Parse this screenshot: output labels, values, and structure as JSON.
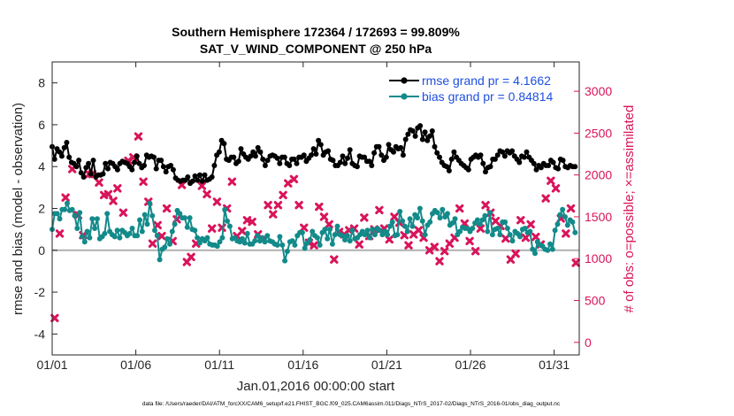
{
  "chart_data": {
    "type": "line",
    "title_line1": "Southern Hemisphere 172364 / 172693 = 99.809%",
    "title_line2": "SAT_V_WIND_COMPONENT @ 250 hPa",
    "xlabel": "Jan.01,2016 00:00:00 start",
    "ylabel_left": "rmse and bias (model - observation)",
    "ylabel_right": "# of obs: o=possible; ×=assimilated",
    "footer": "data file: /Users/raeder/DAI/ATM_forcXX/CAM6_setup/f.e21.FHIST_BGC.f09_025.CAM6assim.011/Diags_NTrS_2017-02/Diags_NTrS_2016-01/obs_diag_output.nc",
    "xlim": [
      0,
      31.5
    ],
    "ylim_left": [
      -5,
      9
    ],
    "ylim_right": [
      -150,
      3350
    ],
    "grid": false,
    "xticks": [
      0,
      5,
      10,
      15,
      20,
      25,
      30
    ],
    "xtick_labels": [
      "01/01",
      "01/06",
      "01/11",
      "01/16",
      "01/21",
      "01/26",
      "01/31"
    ],
    "yticks_left": [
      -4,
      -2,
      0,
      2,
      4,
      6,
      8
    ],
    "yticks_right": [
      0,
      500,
      1000,
      1500,
      2000,
      2500,
      3000
    ],
    "legend": {
      "location": "top-right",
      "entries": [
        "rmse grand pr = 4.1662",
        "bias grand pr = 0.84814"
      ]
    },
    "colors": {
      "rmse": "#000000",
      "bias": "#138a8a",
      "obs": "#d9145a",
      "zero_line": "#b0b0b0",
      "legend_text": "#1f4fe0"
    },
    "series": [
      {
        "name": "rmse",
        "axis": "left",
        "values": [
          4.95,
          4.35,
          4.85,
          4.7,
          4.5,
          4.9,
          5.15,
          4.45,
          4.2,
          4.15,
          4.0,
          4.3,
          3.7,
          3.5,
          3.95,
          4.15,
          3.65,
          4.3,
          3.5,
          3.6,
          3.6,
          3.65,
          4.15,
          3.9,
          4.2,
          4.15,
          4.0,
          3.85,
          4.15,
          4.25,
          4.2,
          4.15,
          4.0,
          3.85,
          4.2,
          4.5,
          4.15,
          3.95,
          4.05,
          4.55,
          4.45,
          4.5,
          4.45,
          3.9,
          4.3,
          4.3,
          4.0,
          3.75,
          4.0,
          4.05,
          3.85,
          3.45,
          3.35,
          3.3,
          3.35,
          3.35,
          3.5,
          3.2,
          3.3,
          3.55,
          3.35,
          3.6,
          3.3,
          3.6,
          3.35,
          3.4,
          3.5,
          4.05,
          4.55,
          4.7,
          5.25,
          5.1,
          4.35,
          4.3,
          4.45,
          4.45,
          4.15,
          4.25,
          4.85,
          4.6,
          4.45,
          4.35,
          4.5,
          4.7,
          4.5,
          4.9,
          4.7,
          4.35,
          4.05,
          4.3,
          4.5,
          4.55,
          4.5,
          4.4,
          4.15,
          4.45,
          4.45,
          4.15,
          4.05,
          4.35,
          4.35,
          4.15,
          4.45,
          4.45,
          4.55,
          4.25,
          4.4,
          4.55,
          4.85,
          4.6,
          5.25,
          5.05,
          4.55,
          4.7,
          4.75,
          4.35,
          4.3,
          4.05,
          4.05,
          4.2,
          4.5,
          4.15,
          4.4,
          4.8,
          4.15,
          4.05,
          4.0,
          4.5,
          4.45,
          4.45,
          4.25,
          4.25,
          4.05,
          4.65,
          4.95,
          4.95,
          4.55,
          4.3,
          4.45,
          5.05,
          4.8,
          4.7,
          4.95,
          4.85,
          4.9,
          4.55,
          5.3,
          5.55,
          5.75,
          5.7,
          5.45,
          5.85,
          5.95,
          5.3,
          5.65,
          5.25,
          5.45,
          5.7,
          4.95,
          4.65,
          4.45,
          4.2,
          4.05,
          4.0,
          3.8,
          4.35,
          4.7,
          4.45,
          4.3,
          4.15,
          4.05,
          3.95,
          3.85,
          4.35,
          4.45,
          4.55,
          4.45,
          4.55,
          4.15,
          3.75,
          3.95,
          4.0,
          4.35,
          4.35,
          4.55,
          4.75,
          4.7,
          4.5,
          4.75,
          4.65,
          4.75,
          4.5,
          4.35,
          4.2,
          4.5,
          4.45,
          4.7,
          4.45,
          4.3,
          4.15,
          3.85,
          4.05,
          3.95,
          4.15,
          4.05,
          4.05,
          4.3,
          4.2,
          3.95,
          3.9,
          4.35,
          4.3,
          4.0,
          3.95,
          4.05,
          4.0,
          4.0
        ]
      },
      {
        "name": "bias",
        "axis": "left",
        "values": [
          1.0,
          1.75,
          1.75,
          1.5,
          1.95,
          1.95,
          2.25,
          1.9,
          1.95,
          1.65,
          1.05,
          1.8,
          0.65,
          0.4,
          0.9,
          0.6,
          1.5,
          1.05,
          1.5,
          0.55,
          0.65,
          0.8,
          1.75,
          0.9,
          0.75,
          0.65,
          0.95,
          0.6,
          0.95,
          0.85,
          0.7,
          0.8,
          1.05,
          0.7,
          0.7,
          1.45,
          0.9,
          1.7,
          1.25,
          2.25,
          1.65,
          0.95,
          0.7,
          -0.45,
          0.05,
          0.15,
          0.55,
          0.3,
          0.9,
          1.25,
          1.9,
          1.75,
          1.55,
          1.55,
          1.1,
          1.55,
          1.0,
          0.95,
          0.6,
          0.35,
          0.55,
          0.45,
          0.6,
          0.3,
          0.25,
          0.25,
          0.2,
          0.4,
          0.6,
          1.95,
          1.4,
          1.15,
          0.55,
          0.6,
          0.45,
          0.4,
          0.55,
          0.35,
          0.8,
          0.3,
          0.3,
          0.45,
          0.7,
          0.45,
          0.6,
          0.4,
          0.7,
          0.45,
          0.4,
          0.3,
          0.25,
          0.65,
          0.25,
          -0.5,
          -0.05,
          0.4,
          0.45,
          0.25,
          0.7,
          0.85,
          0.85,
          0.1,
          0.35,
          0.5,
          0.9,
          0.7,
          0.6,
          0.25,
          0.85,
          1.0,
          0.55,
          1.0,
          0.3,
          0.75,
          1.15,
          0.75,
          0.7,
          0.5,
          0.7,
          0.45,
          0.95,
          0.55,
          0.6,
          0.75,
          0.9,
          0.75,
          0.95,
          0.6,
          1.0,
          0.75,
          1.05,
          0.95,
          0.75,
          0.9,
          0.75,
          1.15,
          1.35,
          0.7,
          0.75,
          1.85,
          1.4,
          1.15,
          0.9,
          1.5,
          1.15,
          1.7,
          1.55,
          2.0,
          1.4,
          0.75,
          1.2,
          1.35,
          1.75,
          1.9,
          1.8,
          1.55,
          1.95,
          1.6,
          1.75,
          1.2,
          1.3,
          1.5,
          0.75,
          0.9,
          1.1,
          1.05,
          1.05,
          0.9,
          1.05,
          1.3,
          1.45,
          1.25,
          1.45,
          1.65,
          0.9,
          1.8,
          0.75,
          1.0,
          1.05,
          0.75,
          1.35,
          1.35,
          1.05,
          0.75,
          0.45,
          0.9,
          0.8,
          0.65,
          1.0,
          1.05,
          0.85,
          0.9,
          0.05,
          -0.15,
          0.4,
          0.25,
          0.2,
          0.05,
          0.0,
          0.3,
          0.05,
          0.95,
          1.25,
          1.7,
          1.95,
          1.6,
          1.2,
          1.45,
          1.35,
          0.85
        ]
      },
      {
        "name": "obs_assimilated",
        "axis": "right",
        "x": [
          0.15,
          0.45,
          0.8,
          1.2,
          1.55,
          1.85,
          2.2,
          2.4,
          2.8,
          3.1,
          3.35,
          3.65,
          3.9,
          4.25,
          4.55,
          4.85,
          5.15,
          5.45,
          5.75,
          6.0,
          6.3,
          6.55,
          6.85,
          7.2,
          7.45,
          7.75,
          8.05,
          8.3,
          8.6,
          8.95,
          9.25,
          9.55,
          9.85,
          10.15,
          10.45,
          10.75,
          11.05,
          11.35,
          11.65,
          11.95,
          12.3,
          12.6,
          12.9,
          13.2,
          13.5,
          13.8,
          14.1,
          14.45,
          14.75,
          15.05,
          15.35,
          15.65,
          15.95,
          16.25,
          16.55,
          16.85,
          17.15,
          17.45,
          17.75,
          18.05,
          18.35,
          18.65,
          18.95,
          19.25,
          19.55,
          19.85,
          20.15,
          20.45,
          20.75,
          21.05,
          21.3,
          21.6,
          21.9,
          22.2,
          22.55,
          22.85,
          23.15,
          23.45,
          23.75,
          24.05,
          24.35,
          24.65,
          24.95,
          25.3,
          25.6,
          25.9,
          26.2,
          26.5,
          26.8,
          27.1,
          27.4,
          27.7,
          28.0,
          28.3,
          28.6,
          28.9,
          29.2,
          29.5,
          29.8,
          30.1,
          30.4,
          30.7,
          31.0,
          31.3
        ],
        "values": [
          290,
          1300,
          1730,
          2070,
          1520,
          1280,
          2010,
          2010,
          1910,
          1760,
          1770,
          1690,
          1840,
          1550,
          2170,
          2210,
          2460,
          1920,
          1680,
          1180,
          1400,
          1270,
          1600,
          1210,
          1470,
          1880,
          960,
          1020,
          1180,
          1870,
          1770,
          1360,
          1680,
          1370,
          1600,
          1920,
          1270,
          1330,
          1460,
          1440,
          1290,
          1230,
          1640,
          1530,
          1640,
          1760,
          1900,
          1950,
          1640,
          1370,
          1190,
          1160,
          1620,
          1500,
          1410,
          990,
          1320,
          1290,
          1340,
          1360,
          1170,
          1490,
          1270,
          1350,
          1580,
          1360,
          1230,
          1500,
          1430,
          1280,
          1160,
          1290,
          1340,
          1250,
          1100,
          1140,
          970,
          1090,
          1180,
          1250,
          1600,
          1420,
          1210,
          1090,
          1360,
          1640,
          1550,
          1450,
          1390,
          1240,
          990,
          1060,
          1460,
          1250,
          1410,
          1260,
          1170,
          1720,
          1930,
          1840,
          1480,
          1300,
          1600,
          950
        ]
      }
    ]
  }
}
